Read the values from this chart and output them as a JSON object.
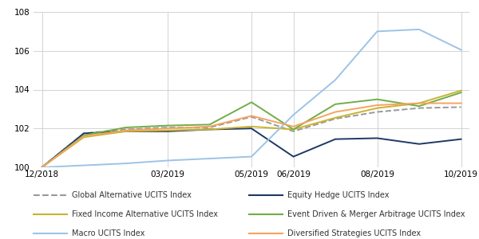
{
  "ylim": [
    100,
    108
  ],
  "yticks": [
    100,
    102,
    104,
    106,
    108
  ],
  "x_tick_labels_map": {
    "0": "12/2018",
    "3": "03/2019",
    "5": "05/2019",
    "6": "06/2019",
    "8": "08/2019",
    "10": "10/2019"
  },
  "n_points": 11,
  "series": [
    {
      "name": "Global Alternative UCITS Index",
      "color": "#999999",
      "linestyle": "--",
      "linewidth": 1.4,
      "values": [
        100.0,
        101.75,
        101.95,
        102.05,
        102.05,
        102.6,
        101.85,
        102.5,
        102.85,
        103.05,
        103.1
      ]
    },
    {
      "name": "Equity Hedge UCITS Index",
      "color": "#1f3864",
      "linestyle": "-",
      "linewidth": 1.4,
      "values": [
        100.0,
        101.75,
        101.85,
        101.85,
        101.95,
        102.0,
        100.55,
        101.45,
        101.5,
        101.2,
        101.45
      ]
    },
    {
      "name": "Fixed Income Alternative UCITS Index",
      "color": "#c9b32e",
      "linestyle": "-",
      "linewidth": 1.4,
      "values": [
        100.0,
        101.55,
        101.85,
        101.9,
        101.95,
        102.1,
        101.95,
        102.55,
        103.05,
        103.3,
        103.95
      ]
    },
    {
      "name": "Event Driven & Merger Arbitrage UCITS Index",
      "color": "#70ad47",
      "linestyle": "-",
      "linewidth": 1.4,
      "values": [
        100.0,
        101.65,
        102.05,
        102.15,
        102.2,
        103.35,
        101.95,
        103.25,
        103.5,
        103.15,
        103.85
      ]
    },
    {
      "name": "Macro UCITS Index",
      "color": "#9dc3e6",
      "linestyle": "-",
      "linewidth": 1.4,
      "values": [
        100.0,
        100.1,
        100.2,
        100.35,
        100.45,
        100.55,
        102.7,
        104.5,
        107.0,
        107.1,
        106.05
      ]
    },
    {
      "name": "Diversified Strategies UCITS Index",
      "color": "#f4a460",
      "linestyle": "-",
      "linewidth": 1.4,
      "values": [
        100.0,
        101.6,
        101.9,
        102.0,
        102.1,
        102.65,
        102.1,
        102.85,
        103.2,
        103.3,
        103.3
      ]
    }
  ],
  "legend_rows": [
    [
      {
        "label": "Global Alternative UCITS Index",
        "color": "#999999",
        "linestyle": "--"
      },
      {
        "label": "Equity Hedge UCITS Index",
        "color": "#1f3864",
        "linestyle": "-"
      }
    ],
    [
      {
        "label": "Fixed Income Alternative UCITS Index",
        "color": "#c9b32e",
        "linestyle": "-"
      },
      {
        "label": "Event Driven & Merger Arbitrage UCITS Index",
        "color": "#70ad47",
        "linestyle": "-"
      }
    ],
    [
      {
        "label": "Macro UCITS Index",
        "color": "#9dc3e6",
        "linestyle": "-"
      },
      {
        "label": "Diversified Strategies UCITS Index",
        "color": "#f4a460",
        "linestyle": "-"
      }
    ]
  ]
}
